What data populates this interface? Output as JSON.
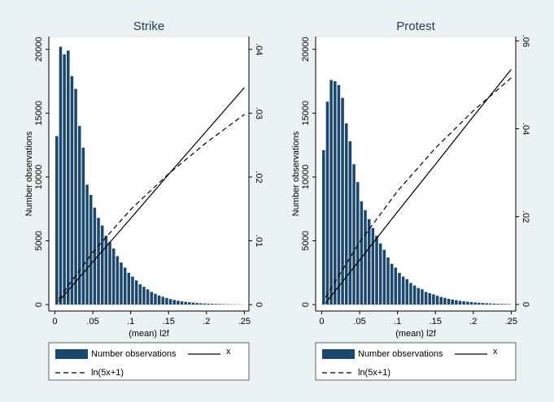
{
  "chart_data": [
    {
      "type": "histogram",
      "title": "Strike",
      "xlabel": "(mean) l2f",
      "ylabel": "Number observations",
      "bins": [
        0,
        0.005,
        0.01,
        0.015,
        0.02,
        0.025,
        0.03,
        0.035,
        0.04,
        0.045,
        0.05,
        0.055,
        0.06,
        0.065,
        0.07,
        0.075,
        0.08,
        0.085,
        0.09,
        0.095,
        0.1,
        0.105,
        0.11,
        0.115,
        0.12,
        0.125,
        0.13,
        0.135,
        0.14,
        0.145,
        0.15,
        0.155,
        0.16,
        0.165,
        0.17,
        0.175,
        0.18,
        0.185,
        0.19,
        0.195,
        0.2,
        0.205,
        0.21,
        0.215,
        0.22,
        0.225,
        0.23,
        0.235,
        0.24,
        0.245,
        0.25
      ],
      "series": [
        {
          "name": "Number observations",
          "color": "#1a476f",
          "values": [
            13200,
            20200,
            19600,
            19900,
            17900,
            16900,
            14000,
            12300,
            9400,
            8600,
            7600,
            6800,
            6200,
            5400,
            4900,
            4400,
            3800,
            3300,
            2900,
            2500,
            2200,
            1900,
            1600,
            1400,
            1200,
            1000,
            850,
            720,
            620,
            520,
            440,
            370,
            310,
            260,
            220,
            190,
            160,
            130,
            110,
            95,
            80,
            68,
            58,
            48,
            40,
            34,
            28,
            24,
            20,
            16
          ]
        },
        {
          "name": "x",
          "color": "#000000",
          "axis": "y2",
          "dash": "solid",
          "x": [
            0.005,
            0.05,
            0.1,
            0.15,
            0.2,
            0.25
          ],
          "values": [
            0.0005,
            0.0067,
            0.0135,
            0.0204,
            0.0272,
            0.034
          ]
        },
        {
          "name": "ln(5x+1)",
          "color": "#000000",
          "axis": "y2",
          "dash": "dashed",
          "x": [
            0.005,
            0.05,
            0.1,
            0.15,
            0.2,
            0.25
          ],
          "values": [
            0.0009,
            0.0082,
            0.0149,
            0.0205,
            0.0254,
            0.0298
          ]
        }
      ],
      "xlim": [
        -0.008,
        0.256
      ],
      "xticks": [
        0,
        {
          "value": 0.05,
          "label": ".05"
        },
        {
          "value": 0.1,
          "label": ".1"
        },
        {
          "value": 0.15,
          "label": ".15"
        },
        {
          "value": 0.2,
          "label": ".2"
        },
        {
          "value": 0.25,
          "label": ".25"
        }
      ],
      "ylim": [
        -500,
        21000
      ],
      "yticks": [
        0,
        5000,
        10000,
        15000,
        20000
      ],
      "y2lim": [
        -0.001,
        0.042
      ],
      "y2ticks": [
        0,
        {
          "value": 0.01,
          "label": ".01"
        },
        {
          "value": 0.02,
          "label": ".02"
        },
        {
          "value": 0.03,
          "label": ".03"
        },
        {
          "value": 0.04,
          "label": ".04"
        }
      ],
      "legend": "bottom",
      "grid": false
    },
    {
      "type": "histogram",
      "title": "Protest",
      "xlabel": "(mean) l2f",
      "ylabel": "Number observations",
      "bins": [
        0,
        0.005,
        0.01,
        0.015,
        0.02,
        0.025,
        0.03,
        0.035,
        0.04,
        0.045,
        0.05,
        0.055,
        0.06,
        0.065,
        0.07,
        0.075,
        0.08,
        0.085,
        0.09,
        0.095,
        0.1,
        0.105,
        0.11,
        0.115,
        0.12,
        0.125,
        0.13,
        0.135,
        0.14,
        0.145,
        0.15,
        0.155,
        0.16,
        0.165,
        0.17,
        0.175,
        0.18,
        0.185,
        0.19,
        0.195,
        0.2,
        0.205,
        0.21,
        0.215,
        0.22,
        0.225,
        0.23,
        0.235,
        0.24,
        0.245,
        0.25
      ],
      "series": [
        {
          "name": "Number observations",
          "color": "#1a476f",
          "values": [
            12100,
            15900,
            17600,
            17500,
            17200,
            16200,
            14200,
            12800,
            11000,
            9600,
            8100,
            7400,
            6700,
            6000,
            5400,
            4800,
            4300,
            3700,
            3200,
            2900,
            2500,
            2200,
            2000,
            1700,
            1500,
            1300,
            1200,
            1000,
            900,
            800,
            700,
            600,
            530,
            460,
            400,
            350,
            300,
            260,
            230,
            200,
            170,
            150,
            130,
            110,
            95,
            80,
            70,
            60,
            50,
            40
          ]
        },
        {
          "name": "x",
          "color": "#000000",
          "axis": "y2",
          "dash": "solid",
          "x": [
            0.005,
            0.05,
            0.1,
            0.15,
            0.2,
            0.25
          ],
          "values": [
            0.0003,
            0.0101,
            0.0211,
            0.0319,
            0.0428,
            0.0535
          ]
        },
        {
          "name": "ln(5x+1)",
          "color": "#000000",
          "axis": "y2",
          "dash": "dashed",
          "x": [
            0.005,
            0.05,
            0.1,
            0.15,
            0.2,
            0.25
          ],
          "values": [
            0.0016,
            0.0142,
            0.0258,
            0.0356,
            0.0441,
            0.0516
          ]
        }
      ],
      "xlim": [
        -0.008,
        0.256
      ],
      "xticks": [
        0,
        {
          "value": 0.05,
          "label": ".05"
        },
        {
          "value": 0.1,
          "label": ".1"
        },
        {
          "value": 0.15,
          "label": ".15"
        },
        {
          "value": 0.2,
          "label": ".2"
        },
        {
          "value": 0.25,
          "label": ".25"
        }
      ],
      "ylim": [
        -500,
        21000
      ],
      "yticks": [
        0,
        5000,
        10000,
        15000,
        20000
      ],
      "y2lim": [
        -0.0015,
        0.061
      ],
      "y2ticks": [
        0,
        {
          "value": 0.02,
          "label": ".02"
        },
        {
          "value": 0.04,
          "label": ".04"
        },
        {
          "value": 0.06,
          "label": ".06"
        }
      ],
      "legend": "bottom",
      "grid": false
    }
  ]
}
